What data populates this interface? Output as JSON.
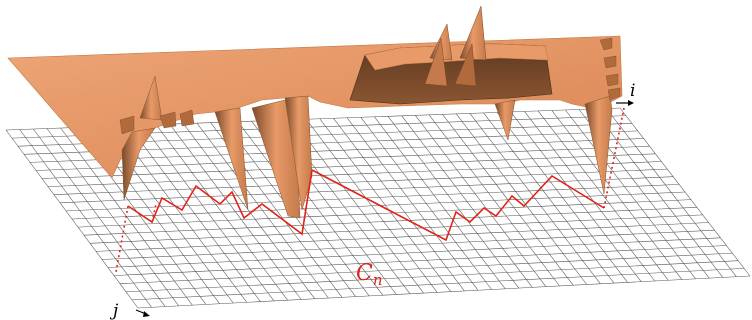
{
  "figure": {
    "labels": {
      "i_axis": "i",
      "j_axis": "j",
      "curve_main": "C",
      "curve_sub": "n"
    },
    "colors": {
      "surface_light": "#e89a68",
      "surface_mid": "#d98552",
      "surface_dark": "#7a4a2a",
      "grid": "#555555",
      "curve": "#e2231a"
    }
  }
}
